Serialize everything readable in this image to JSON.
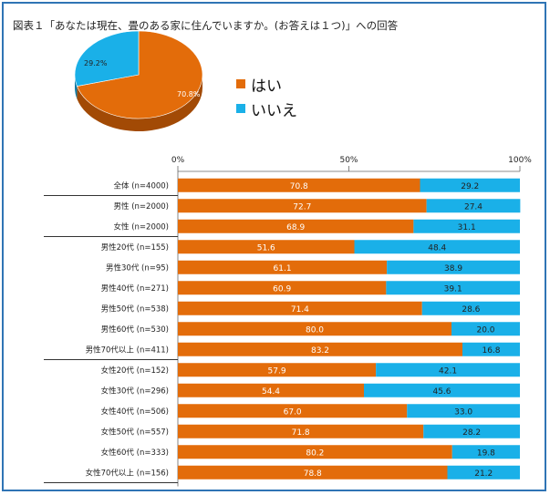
{
  "figure": {
    "title": "図表１「あなたは現在、畳のある家に住んでいますか。(お答えは１つ)」への回答"
  },
  "colors": {
    "yes": "#e36c0a",
    "no": "#1ab0e8",
    "yes_dark": "#a24a05",
    "no_dark": "#0e7aa3"
  },
  "chart_data": [
    {
      "type": "pie",
      "labels": [
        "はい",
        "いいえ"
      ],
      "values": [
        70.8,
        29.2
      ],
      "value_labels": [
        "70.8%",
        "29.2%"
      ],
      "legend": [
        "はい",
        "いいえ"
      ],
      "legend_position": "right"
    },
    {
      "type": "bar",
      "orientation": "horizontal",
      "stacked": true,
      "xlim": [
        0,
        100
      ],
      "x_ticks": [
        "0%",
        "50%",
        "100%"
      ],
      "categories": [
        "全体 (n=4000)",
        "男性 (n=2000)",
        "女性 (n=2000)",
        "男性20代 (n=155)",
        "男性30代 (n=95)",
        "男性40代 (n=271)",
        "男性50代 (n=538)",
        "男性60代 (n=530)",
        "男性70代以上 (n=411)",
        "女性20代 (n=152)",
        "女性30代 (n=296)",
        "女性40代 (n=506)",
        "女性50代 (n=557)",
        "女性60代 (n=333)",
        "女性70代以上 (n=156)"
      ],
      "series": [
        {
          "name": "はい",
          "values": [
            70.8,
            72.7,
            68.9,
            51.6,
            61.1,
            60.9,
            71.4,
            80.0,
            83.2,
            57.9,
            54.4,
            67.0,
            71.8,
            80.2,
            78.8
          ],
          "labels": [
            "70.8",
            "72.7",
            "68.9",
            "51.6",
            "61.1",
            "60.9",
            "71.4",
            "80.0",
            "83.2",
            "57.9",
            "54.4",
            "67.0",
            "71.8",
            "80.2",
            "78.8"
          ]
        },
        {
          "name": "いいえ",
          "values": [
            29.2,
            27.4,
            31.1,
            48.4,
            38.9,
            39.1,
            28.6,
            20.0,
            16.8,
            42.1,
            45.6,
            33.0,
            28.2,
            19.8,
            21.2
          ],
          "labels": [
            "29.2",
            "27.4",
            "31.1",
            "48.4",
            "38.9",
            "39.1",
            "28.6",
            "20.0",
            "16.8",
            "42.1",
            "45.6",
            "33.0",
            "28.2",
            "19.8",
            "21.2"
          ]
        }
      ],
      "group_separators_after": [
        0,
        2,
        8
      ]
    }
  ]
}
